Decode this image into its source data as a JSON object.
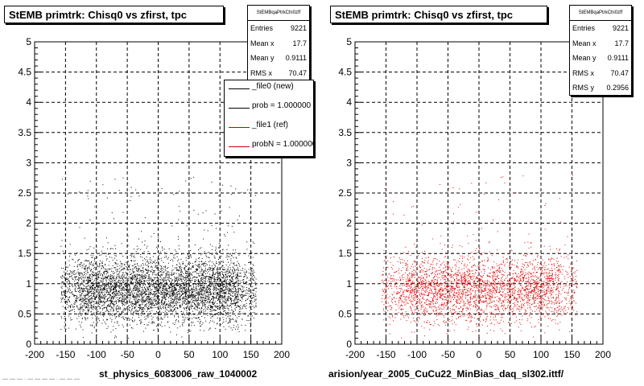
{
  "panels": [
    {
      "title": "StEMB primtrk: Chisq0 vs zfirst, tpc",
      "caption": "st_physics_6083006_raw_1040002",
      "stats": {
        "header": "StEMBqaPtrkChi0zff",
        "rows": [
          {
            "key": "Entries",
            "val": "9221"
          },
          {
            "key": "Mean x",
            "val": "17.7"
          },
          {
            "key": "Mean y",
            "val": "0.9111"
          },
          {
            "key": "RMS x",
            "val": "70.47"
          }
        ]
      }
    },
    {
      "title": "StEMB primtrk: Chisq0 vs zfirst, tpc",
      "caption": "arision/year_2005_CuCu22_MinBias_daq_sl302.ittf/",
      "stats": {
        "header": "StEMBqaPtrkChi0zff",
        "rows": [
          {
            "key": "Entries",
            "val": "9221"
          },
          {
            "key": "Mean x",
            "val": "17.7"
          },
          {
            "key": "Mean y",
            "val": "0.9111"
          },
          {
            "key": "RMS x",
            "val": "70.47"
          },
          {
            "key": "RMS y",
            "val": "0.2956"
          }
        ]
      }
    }
  ],
  "legend": [
    {
      "label": "_file0 (new)",
      "color": "#000000"
    },
    {
      "label": "prob = 1.000000",
      "color": "#000000"
    },
    {
      "label": "_file1 (ref)",
      "color": "#cc0000"
    },
    {
      "label": "probN = 1.000000",
      "color": "#cc0000"
    }
  ],
  "footer": "— — — · — — — — · — — —",
  "chart_data": [
    {
      "type": "scatter",
      "xlim": [
        -200,
        200
      ],
      "ylim": [
        0,
        5
      ],
      "x_ticks": [
        -200,
        -150,
        -100,
        -50,
        0,
        50,
        100,
        150,
        200
      ],
      "y_ticks": [
        0,
        0.5,
        1,
        1.5,
        2,
        2.5,
        3,
        3.5,
        4,
        4.5,
        5
      ],
      "grid": true,
      "color": "#000000",
      "entries": 9221,
      "mean_x": 17.7,
      "mean_y": 0.9111,
      "rms_x": 70.47,
      "points_drawn": 5200
    },
    {
      "type": "scatter",
      "xlim": [
        -200,
        200
      ],
      "ylim": [
        0,
        5
      ],
      "x_ticks": [
        -200,
        -150,
        -100,
        -50,
        0,
        50,
        100,
        150,
        200
      ],
      "y_ticks": [
        0,
        0.5,
        1,
        1.5,
        2,
        2.5,
        3,
        3.5,
        4,
        4.5,
        5
      ],
      "grid": true,
      "color": "#e00000",
      "entries": 9221,
      "mean_x": 17.7,
      "mean_y": 0.9111,
      "rms_x": 70.47,
      "rms_y": 0.2956,
      "points_drawn": 3200
    }
  ]
}
